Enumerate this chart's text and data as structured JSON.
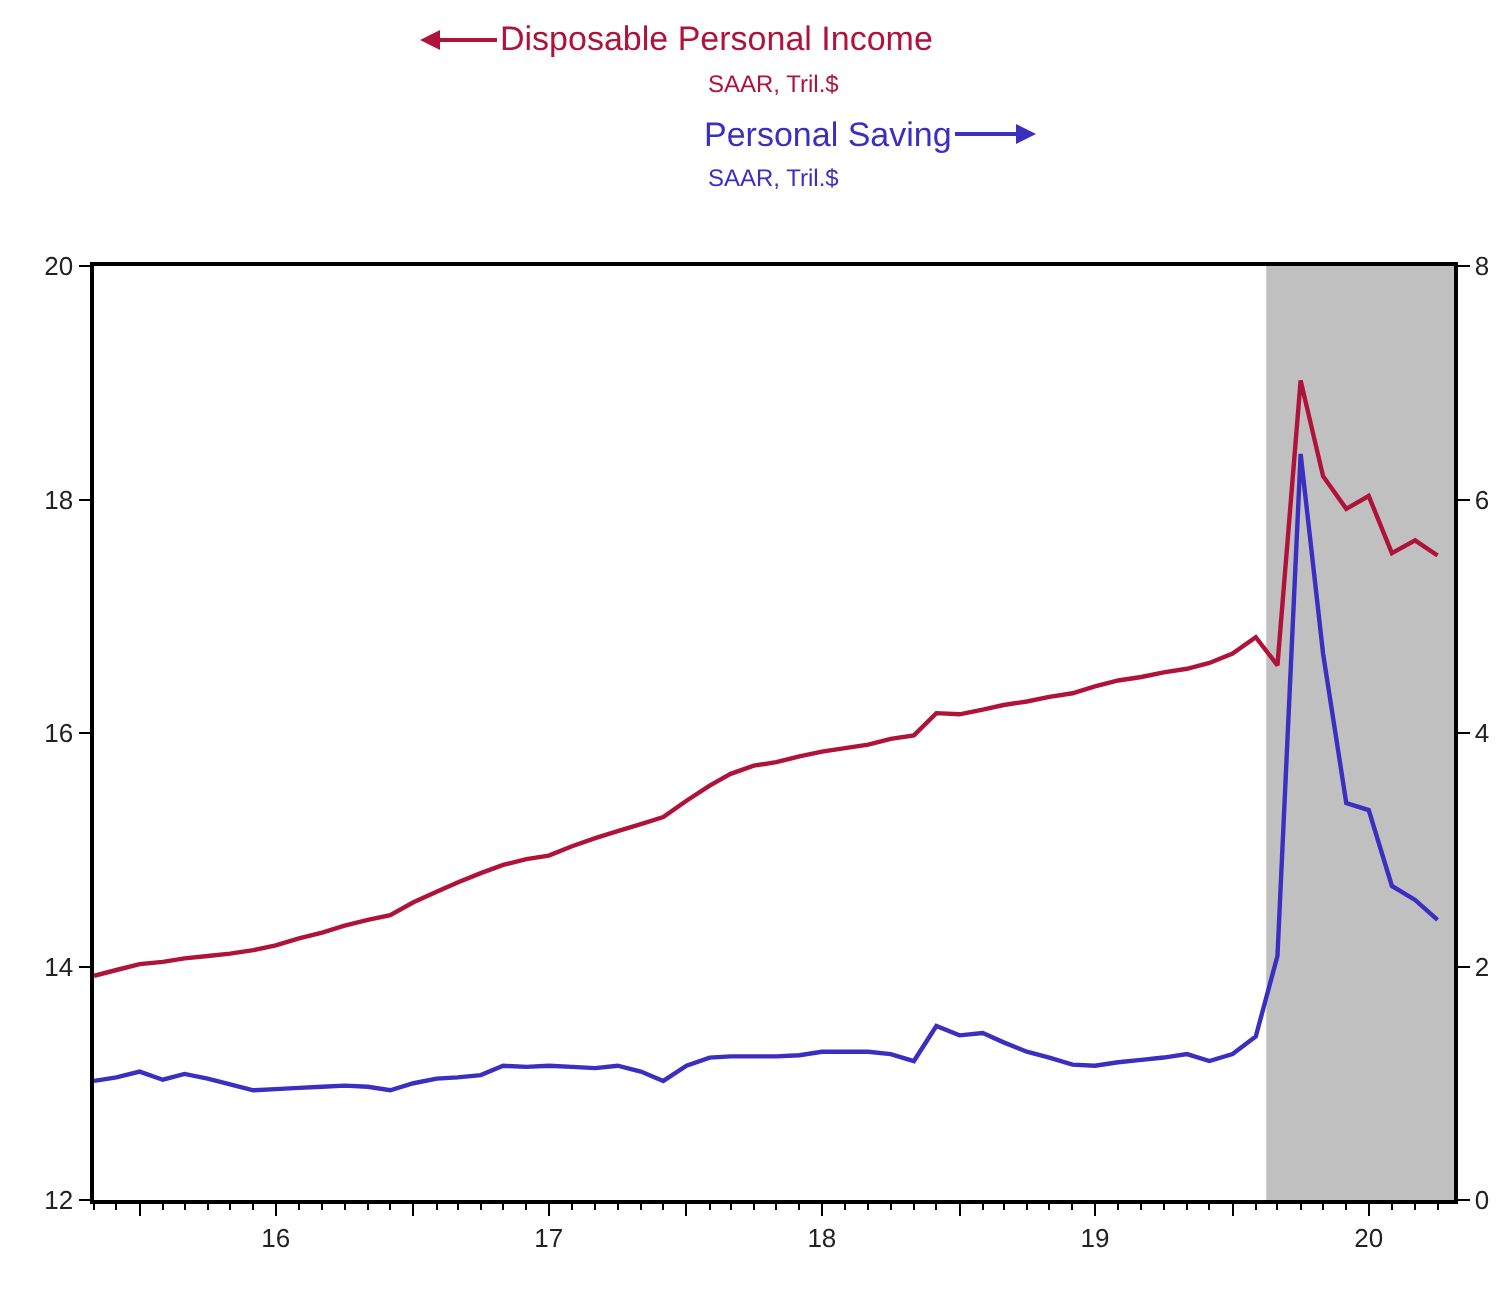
{
  "chart_data": {
    "type": "line",
    "x": [
      "2015-11",
      "2015-12",
      "2016-01",
      "2016-02",
      "2016-03",
      "2016-04",
      "2016-05",
      "2016-06",
      "2016-07",
      "2016-08",
      "2016-09",
      "2016-10",
      "2016-11",
      "2016-12",
      "2017-01",
      "2017-02",
      "2017-03",
      "2017-04",
      "2017-05",
      "2017-06",
      "2017-07",
      "2017-08",
      "2017-09",
      "2017-10",
      "2017-11",
      "2017-12",
      "2018-01",
      "2018-02",
      "2018-03",
      "2018-04",
      "2018-05",
      "2018-06",
      "2018-07",
      "2018-08",
      "2018-09",
      "2018-10",
      "2018-11",
      "2018-12",
      "2019-01",
      "2019-02",
      "2019-03",
      "2019-04",
      "2019-05",
      "2019-06",
      "2019-07",
      "2019-08",
      "2019-09",
      "2019-10",
      "2019-11",
      "2019-12",
      "2020-01",
      "2020-02",
      "2020-03",
      "2020-04",
      "2020-05",
      "2020-06",
      "2020-07",
      "2020-08",
      "2020-09",
      "2020-10"
    ],
    "series": [
      {
        "name": "Disposable Personal Income",
        "color": "#b0133a",
        "values": [
          13.92,
          13.97,
          14.02,
          14.04,
          14.07,
          14.09,
          14.11,
          14.14,
          14.18,
          14.24,
          14.29,
          14.35,
          14.4,
          14.44,
          14.55,
          14.64,
          14.72,
          14.8,
          14.87,
          14.92,
          14.95,
          15.03,
          15.1,
          15.16,
          15.22,
          15.28,
          15.42,
          15.55,
          15.65,
          15.72,
          15.75,
          15.8,
          15.84,
          15.87,
          15.9,
          15.95,
          15.98,
          16.17,
          16.16,
          16.2,
          16.24,
          16.27,
          16.31,
          16.34,
          16.4,
          16.45,
          16.48,
          16.52,
          16.55,
          16.6,
          16.68,
          16.82,
          16.58,
          19.02,
          18.2,
          17.92,
          18.03,
          17.54,
          17.65,
          17.52
        ]
      },
      {
        "name": "Personal Saving",
        "color": "#3a2fc0",
        "axis": "y2",
        "values": [
          1.02,
          1.05,
          1.1,
          1.03,
          1.08,
          1.04,
          0.99,
          0.94,
          0.95,
          0.96,
          0.97,
          0.98,
          0.97,
          0.94,
          1.0,
          1.04,
          1.05,
          1.07,
          1.15,
          1.14,
          1.15,
          1.14,
          1.13,
          1.15,
          1.1,
          1.02,
          1.15,
          1.22,
          1.23,
          1.23,
          1.23,
          1.24,
          1.27,
          1.27,
          1.27,
          1.25,
          1.19,
          1.49,
          1.41,
          1.43,
          1.35,
          1.27,
          1.22,
          1.16,
          1.15,
          1.18,
          1.2,
          1.22,
          1.25,
          1.19,
          1.25,
          1.4,
          2.09,
          6.39,
          4.68,
          3.4,
          3.34,
          2.69,
          2.57,
          2.4
        ]
      }
    ],
    "annotations": [
      "SAAR, Tril.$",
      "SAAR, Tril.$"
    ],
    "xlim": [
      "2015-11-01",
      "2020-10-23"
    ],
    "xticks": [
      {
        "value": "2016-01-01",
        "label": null
      },
      {
        "value": "2016-07-01",
        "label": "16"
      },
      {
        "value": "2017-01-01",
        "label": null
      },
      {
        "value": "2017-07-01",
        "label": "17"
      },
      {
        "value": "2018-01-01",
        "label": null
      },
      {
        "value": "2018-07-01",
        "label": "18"
      },
      {
        "value": "2019-01-01",
        "label": null
      },
      {
        "value": "2019-07-01",
        "label": "19"
      },
      {
        "value": "2020-01-01",
        "label": null
      },
      {
        "value": "2020-07-01",
        "label": "20"
      }
    ],
    "ylim": [
      12,
      20
    ],
    "yticks": [
      12,
      14,
      16,
      18,
      20
    ],
    "y2lim": [
      0,
      8
    ],
    "y2ticks": [
      0,
      2,
      4,
      6,
      8
    ],
    "bands": [
      {
        "axis": "x",
        "from": "2020-02-15",
        "to": "2020-10-23",
        "color": "#c0c0c0"
      }
    ],
    "grid": false,
    "legend": "top",
    "marker": "none",
    "line_style": "solid"
  }
}
